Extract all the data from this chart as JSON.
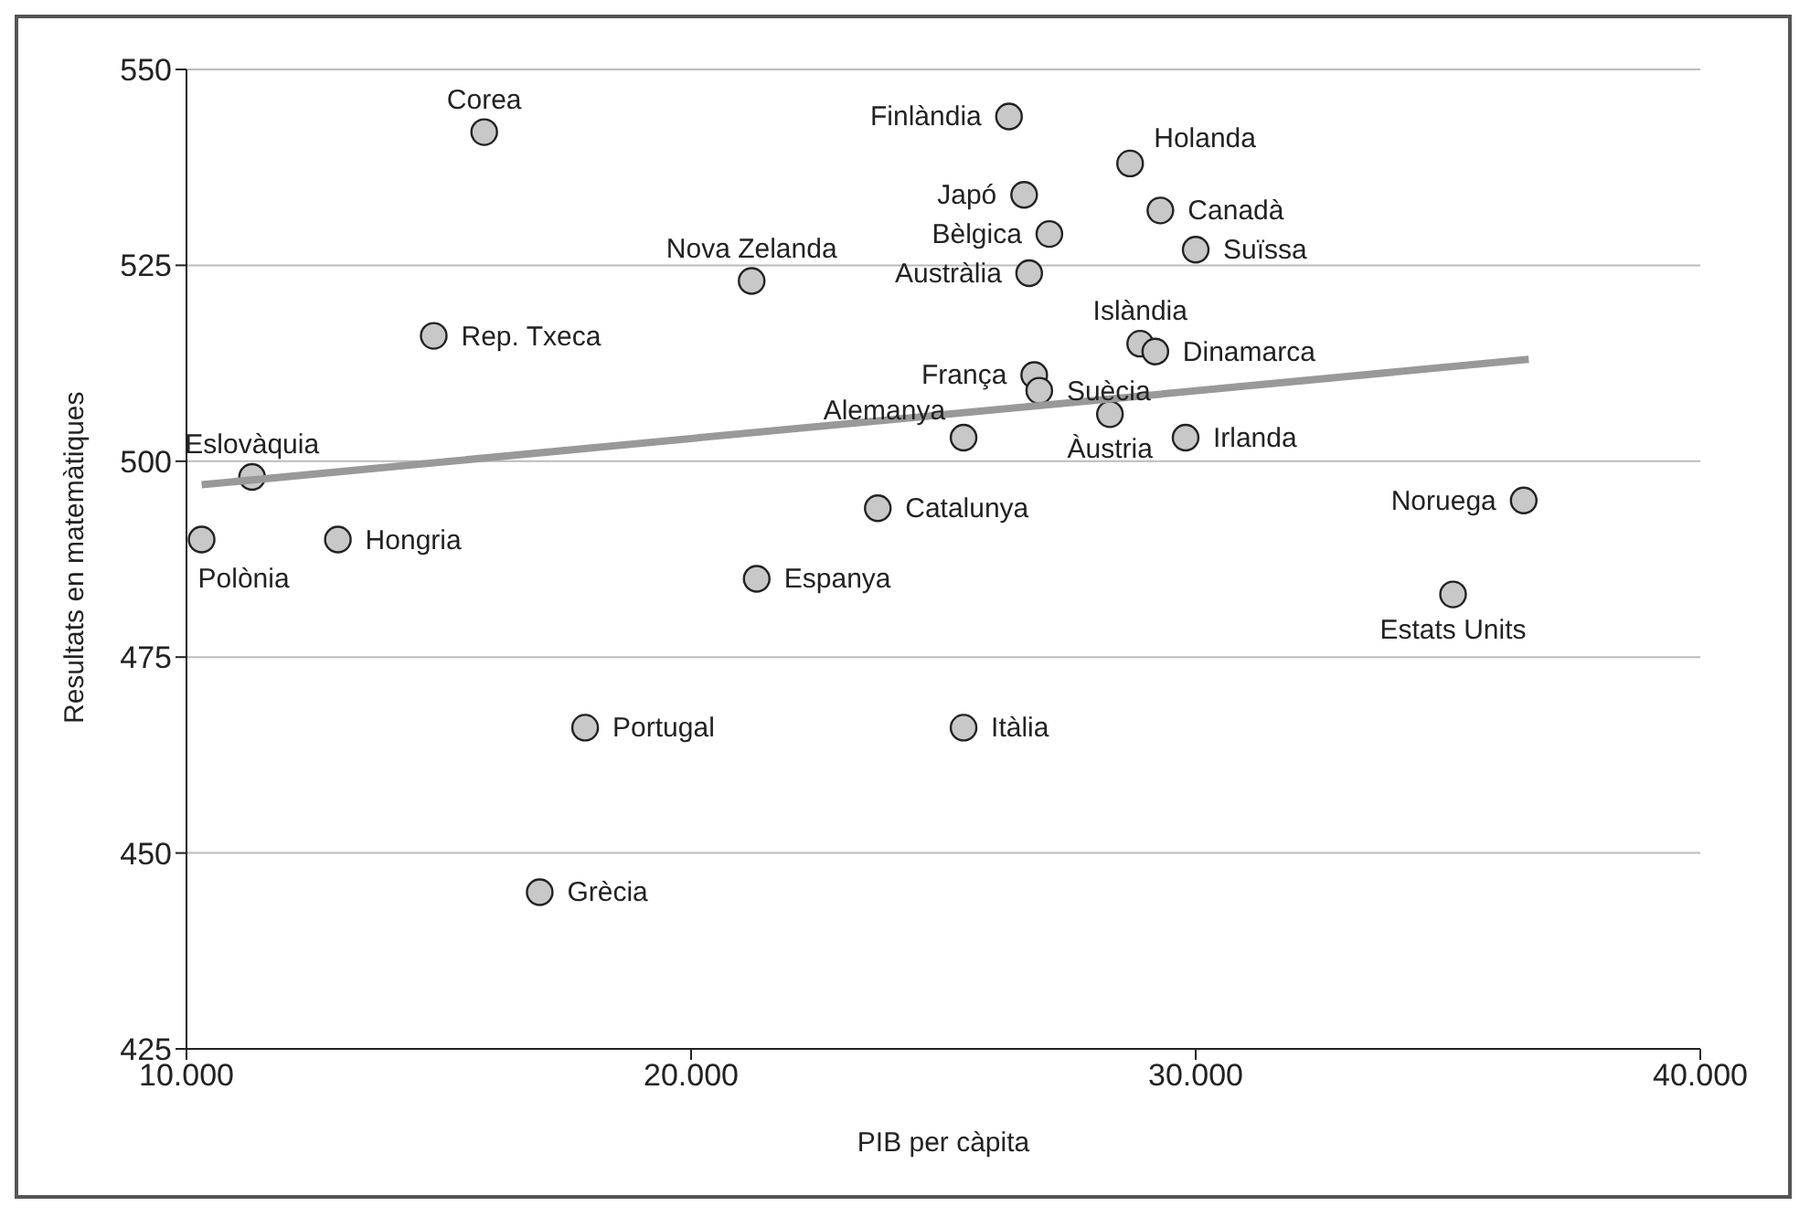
{
  "chart_data": {
    "type": "scatter",
    "xlabel": "PIB per càpita",
    "ylabel": "Resultats en matemàtiques",
    "xlim": [
      10000,
      40000
    ],
    "xticks": [
      {
        "value": 10000,
        "label": "10.000"
      },
      {
        "value": 20000,
        "label": "20.000"
      },
      {
        "value": 30000,
        "label": "30.000"
      },
      {
        "value": 40000,
        "label": "40.000"
      }
    ],
    "ylim": [
      425,
      550
    ],
    "yticks": [
      425,
      450,
      475,
      500,
      525,
      550
    ],
    "grid": "y",
    "series": [
      {
        "color": "#c8c8c8",
        "marker": "circle",
        "x": [
          15900,
          26300,
          28700,
          26600,
          29300,
          27100,
          30000,
          26700,
          21200,
          14900,
          28900,
          29200,
          26800,
          26900,
          28300,
          11300,
          25400,
          29800,
          36500,
          23700,
          10300,
          13000,
          21300,
          35100,
          17900,
          25400,
          17000
        ],
        "values": [
          542,
          544,
          538,
          534,
          532,
          529,
          527,
          524,
          523,
          516,
          515,
          514,
          511,
          509,
          506,
          498,
          503,
          503,
          495,
          494,
          490,
          490,
          485,
          483,
          466,
          466,
          445
        ]
      },
      {
        "type": "line",
        "color": "#999999",
        "marker": "none",
        "x": [
          10300,
          36600
        ],
        "values": [
          497,
          513
        ]
      }
    ],
    "annotations": [
      {
        "text": "Corea",
        "x": 15900,
        "y": 542
      },
      {
        "text": "Finlàndia",
        "x": 26300,
        "y": 544
      },
      {
        "text": "Holanda",
        "x": 28700,
        "y": 538
      },
      {
        "text": "Japó",
        "x": 26600,
        "y": 534
      },
      {
        "text": "Canadà",
        "x": 29300,
        "y": 532
      },
      {
        "text": "Bèlgica",
        "x": 27100,
        "y": 529
      },
      {
        "text": "Suïssa",
        "x": 30000,
        "y": 527
      },
      {
        "text": "Austràlia",
        "x": 26700,
        "y": 524
      },
      {
        "text": "Nova Zelanda",
        "x": 21200,
        "y": 523
      },
      {
        "text": "Rep. Txeca",
        "x": 14900,
        "y": 516
      },
      {
        "text": "Islàndia",
        "x": 28900,
        "y": 515
      },
      {
        "text": "Dinamarca",
        "x": 29200,
        "y": 514
      },
      {
        "text": "França",
        "x": 26800,
        "y": 511
      },
      {
        "text": "Suècia",
        "x": 26900,
        "y": 509
      },
      {
        "text": "Àustria",
        "x": 28300,
        "y": 506
      },
      {
        "text": "Eslovàquia",
        "x": 11300,
        "y": 498
      },
      {
        "text": "Alemanya",
        "x": 25400,
        "y": 503
      },
      {
        "text": "Irlanda",
        "x": 29800,
        "y": 503
      },
      {
        "text": "Noruega",
        "x": 36500,
        "y": 495
      },
      {
        "text": "Catalunya",
        "x": 23700,
        "y": 494
      },
      {
        "text": "Polònia",
        "x": 10300,
        "y": 490
      },
      {
        "text": "Hongria",
        "x": 13000,
        "y": 490
      },
      {
        "text": "Espanya",
        "x": 21300,
        "y": 485
      },
      {
        "text": "Estats Units",
        "x": 35100,
        "y": 483
      },
      {
        "text": "Portugal",
        "x": 17900,
        "y": 466
      },
      {
        "text": "Itàlia",
        "x": 25400,
        "y": 466
      },
      {
        "text": "Grècia",
        "x": 17000,
        "y": 445
      }
    ]
  }
}
